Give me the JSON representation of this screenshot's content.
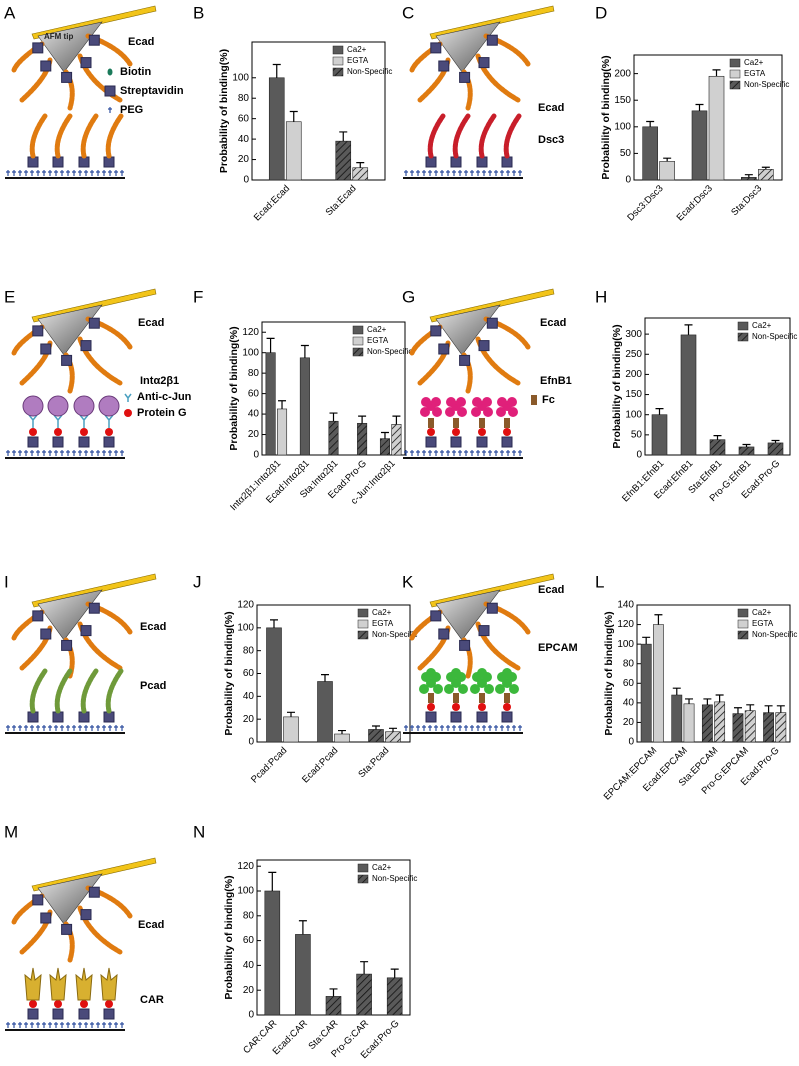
{
  "chart_data": [
    {
      "type": "bar",
      "label": "B",
      "ylabel": "Probability of binding(%)",
      "categories": [
        "Ecad:Ecad",
        "Sta:Ecad"
      ],
      "hatched": [
        false,
        true
      ],
      "hatch_label": "Non-Specific",
      "series": [
        {
          "name": "Ca2+",
          "color": "#5a5a5a",
          "values": [
            100,
            38
          ],
          "errors": [
            13,
            9
          ]
        },
        {
          "name": "EGTA",
          "color": "#d0d0d0",
          "values": [
            57,
            12
          ],
          "errors": [
            10,
            5
          ]
        }
      ],
      "ylim": [
        0,
        135
      ],
      "yticks": [
        0,
        20,
        40,
        60,
        80,
        100
      ]
    },
    {
      "type": "bar",
      "label": "D",
      "ylabel": "Probability of binding(%)",
      "categories": [
        "Dsc3:Dsc3",
        "Ecad:Dsc3",
        "Sta:Dsc3"
      ],
      "hatched": [
        false,
        false,
        true
      ],
      "hatch_label": "Non-Specific",
      "series": [
        {
          "name": "Ca2+",
          "color": "#5a5a5a",
          "values": [
            100,
            130,
            5
          ],
          "errors": [
            10,
            12,
            5
          ]
        },
        {
          "name": "EGTA",
          "color": "#d0d0d0",
          "values": [
            35,
            195,
            20
          ],
          "errors": [
            6,
            12,
            4
          ]
        }
      ],
      "ylim": [
        0,
        235
      ],
      "yticks": [
        0,
        50,
        100,
        150,
        200
      ]
    },
    {
      "type": "bar",
      "label": "F",
      "ylabel": "Probability of binding(%)",
      "categories": [
        "Intα2β1:Intα2β1",
        "Ecad:Intα2β1",
        "Sta:Intα2β1",
        "Ecad:Pro-G",
        "c-Jun:Intα2β1"
      ],
      "hatched": [
        false,
        false,
        true,
        true,
        true
      ],
      "hatch_label": "Non-Specific",
      "series": [
        {
          "name": "Ca2+",
          "color": "#5a5a5a",
          "values": [
            100,
            95,
            33,
            31,
            16
          ],
          "errors": [
            14,
            12,
            8,
            7,
            6
          ]
        },
        {
          "name": "EGTA",
          "color": "#d0d0d0",
          "values": [
            45,
            null,
            null,
            null,
            30
          ],
          "errors": [
            8,
            null,
            null,
            null,
            8
          ]
        }
      ],
      "ylim": [
        0,
        130
      ],
      "yticks": [
        0,
        20,
        40,
        60,
        80,
        100,
        120
      ]
    },
    {
      "type": "bar",
      "label": "H",
      "ylabel": "Probability of binding(%)",
      "categories": [
        "EfnB1:EfnB1",
        "Ecad:EfnB1",
        "Sta:EfnB1",
        "Pro-G:EfnB1",
        "Ecad:Pro-G"
      ],
      "hatched": [
        false,
        false,
        true,
        true,
        true
      ],
      "hatch_label": "Non-Specific",
      "series": [
        {
          "name": "Ca2+",
          "color": "#5a5a5a",
          "values": [
            100,
            298,
            38,
            20,
            30
          ],
          "errors": [
            15,
            25,
            10,
            6,
            6
          ]
        }
      ],
      "ylim": [
        0,
        340
      ],
      "yticks": [
        0,
        50,
        100,
        150,
        200,
        250,
        300
      ]
    },
    {
      "type": "bar",
      "label": "J",
      "ylabel": "Probability of binding(%)",
      "categories": [
        "Pcad:Pcad",
        "Ecad:Pcad",
        "Sta:Pcad"
      ],
      "hatched": [
        false,
        false,
        true
      ],
      "hatch_label": "Non-Specific",
      "series": [
        {
          "name": "Ca2+",
          "color": "#5a5a5a",
          "values": [
            100,
            53,
            11
          ],
          "errors": [
            7,
            6,
            3
          ]
        },
        {
          "name": "EGTA",
          "color": "#d0d0d0",
          "values": [
            22,
            7,
            9
          ],
          "errors": [
            4,
            3,
            3
          ]
        }
      ],
      "ylim": [
        0,
        120
      ],
      "yticks": [
        0,
        20,
        40,
        60,
        80,
        100,
        120
      ]
    },
    {
      "type": "bar",
      "label": "L",
      "ylabel": "Probability of binding(%)",
      "categories": [
        "EPCAM:EPCAM",
        "Ecad:EPCAM",
        "Sta:EPCAM",
        "Pro-G:EPCAM",
        "Ecad:Pro-G"
      ],
      "hatched": [
        false,
        false,
        true,
        true,
        true
      ],
      "hatch_label": "Non-Specific",
      "series": [
        {
          "name": "Ca2+",
          "color": "#5a5a5a",
          "values": [
            100,
            48,
            38,
            29,
            30
          ],
          "errors": [
            7,
            7,
            6,
            6,
            7
          ]
        },
        {
          "name": "EGTA",
          "color": "#d0d0d0",
          "values": [
            120,
            39,
            41,
            32,
            30
          ],
          "errors": [
            10,
            5,
            7,
            6,
            7
          ]
        }
      ],
      "ylim": [
        0,
        140
      ],
      "yticks": [
        0,
        20,
        40,
        60,
        80,
        100,
        120,
        140
      ]
    },
    {
      "type": "bar",
      "label": "N",
      "ylabel": "Probability of binding(%)",
      "categories": [
        "CAR:CAR",
        "Ecad:CAR",
        "Sta:CAR",
        "Pro-G:CAR",
        "Ecad:Pro-G"
      ],
      "hatched": [
        false,
        false,
        true,
        true,
        true
      ],
      "hatch_label": "Non-Specific",
      "series": [
        {
          "name": "Ca2+",
          "color": "#5a5a5a",
          "values": [
            100,
            65,
            15,
            33,
            30
          ],
          "errors": [
            15,
            11,
            6,
            10,
            7
          ]
        }
      ],
      "ylim": [
        0,
        125
      ],
      "yticks": [
        0,
        20,
        40,
        60,
        80,
        100,
        120
      ]
    }
  ],
  "schematics": [
    {
      "label": "A",
      "texts": [
        "AFM tip",
        "Ecad",
        "Biotin",
        "Streptavidin",
        "PEG"
      ]
    },
    {
      "label": "C",
      "texts": [
        "Ecad",
        "Dsc3"
      ]
    },
    {
      "label": "E",
      "texts": [
        "Ecad",
        "Intα2β1",
        "Anti-c-Jun",
        "Protein G"
      ]
    },
    {
      "label": "G",
      "texts": [
        "Ecad",
        "EfnB1",
        "Fc"
      ]
    },
    {
      "label": "I",
      "texts": [
        "Ecad",
        "Pcad"
      ]
    },
    {
      "label": "K",
      "texts": [
        "Ecad",
        "EPCAM"
      ]
    },
    {
      "label": "M",
      "texts": [
        "Ecad",
        "CAR"
      ]
    }
  ]
}
